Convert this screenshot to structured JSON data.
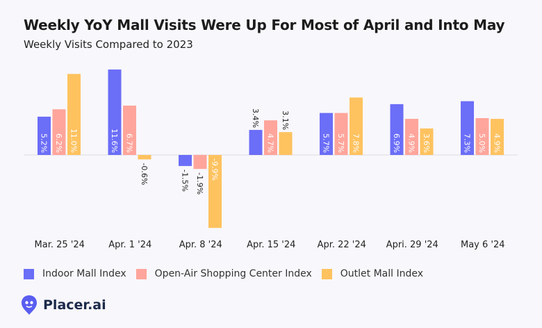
{
  "chart_data": {
    "type": "bar",
    "title": "Weekly YoY Mall Visits Were Up For Most of April and Into May",
    "subtitle": "Weekly Visits Compared to 2023",
    "categories": [
      "Mar. 25 '24",
      "Apr. 1 '24",
      "Apr. 8 '24",
      "Apr. 15 '24",
      "Apr. 22 '24",
      "Apri. 29 '24",
      "May 6 '24"
    ],
    "series": [
      {
        "name": "Indoor Mall Index",
        "color": "#6b6ef7",
        "values": [
          5.2,
          11.6,
          -1.5,
          3.4,
          5.7,
          6.9,
          7.3
        ],
        "labels": [
          "5.2%",
          "11.6%",
          "-1.5%",
          "3.4%",
          "5.7%",
          "6.9%",
          "7.3%"
        ]
      },
      {
        "name": "Open-Air Shopping Center Index",
        "color": "#ffa59b",
        "values": [
          6.2,
          6.7,
          -1.9,
          4.7,
          5.7,
          4.9,
          5.0
        ],
        "labels": [
          "6.2%",
          "6.7%",
          "-1.9%",
          "4.7%",
          "5.7%",
          "4.9%",
          "5.0%"
        ]
      },
      {
        "name": "Outlet Mall Index",
        "color": "#fec25f",
        "values": [
          11.0,
          -0.6,
          -9.9,
          3.1,
          7.8,
          3.6,
          4.9
        ],
        "labels": [
          "11.0%",
          "-0.6%",
          "-9.9%",
          "3.1%",
          "7.8%",
          "3.6%",
          "4.9%"
        ]
      }
    ],
    "xlabel": "",
    "ylabel": "",
    "ylim": [
      -9.9,
      11.6
    ],
    "grid": false,
    "legend_position": "bottom-left"
  },
  "brand": {
    "name": "Placer.ai",
    "logo_icon": "placer-pin-icon"
  }
}
